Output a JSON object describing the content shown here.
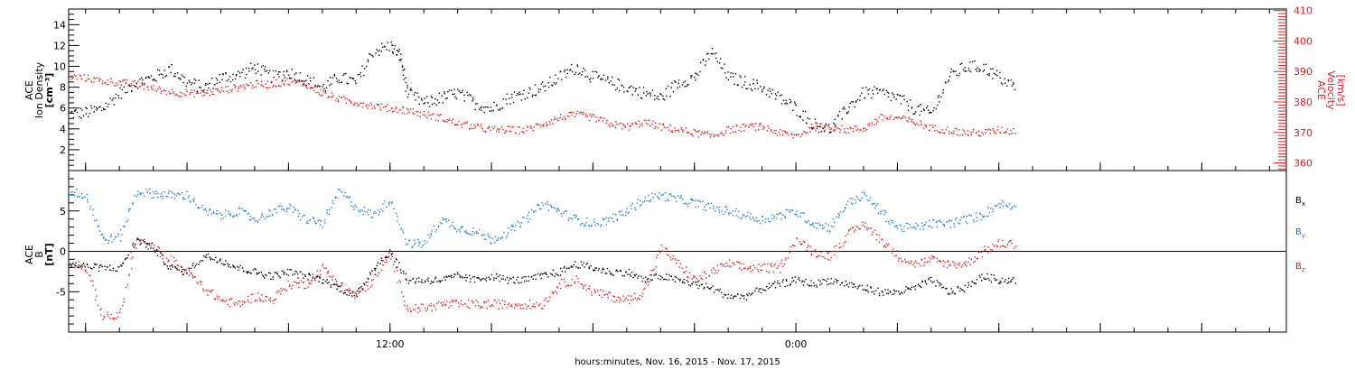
{
  "chart_data": [
    {
      "type": "scatter",
      "panel": "top",
      "ylabel_lines": [
        "ACE",
        "Ion Density",
        "[cm⁻³]"
      ],
      "ylabel_right_lines": [
        "ACE",
        "Velocity",
        "[km/s]"
      ],
      "ylim": [
        0,
        15.5
      ],
      "yticks": [
        2,
        4,
        6,
        8,
        10,
        12,
        14
      ],
      "ylim_right": [
        357.5,
        410.5
      ],
      "yticks_right": [
        360,
        370,
        380,
        390,
        400,
        410
      ],
      "series": [
        {
          "color": "#000000",
          "axis": "left",
          "x_hours": [
            0.0,
            0.5,
            1.0,
            1.5,
            2.0,
            2.5,
            3.0,
            3.5,
            4.0,
            4.5,
            5.0,
            5.5,
            6.0,
            6.5,
            7.0,
            7.5,
            8.0,
            8.5,
            9.0,
            9.5,
            9.8,
            10.0,
            10.5,
            11.0,
            11.5,
            12.0,
            12.5,
            13.0,
            13.5,
            14.0,
            14.5,
            15.0,
            15.5,
            16.0,
            16.5,
            17.0,
            17.5,
            18.0,
            18.5,
            19.0,
            19.5,
            20.0,
            20.5,
            21.0,
            21.5,
            22.0,
            22.5,
            23.0,
            23.5,
            24.0,
            24.5,
            25.0,
            25.5,
            26.0,
            26.5,
            27.0,
            27.5,
            28.0
          ],
          "values": [
            5.5,
            5.6,
            6.0,
            7.5,
            8.5,
            9.0,
            9.8,
            8.5,
            8.0,
            9.0,
            9.2,
            10.0,
            9.0,
            9.5,
            8.8,
            8.0,
            9.0,
            8.5,
            11.5,
            12.0,
            11.0,
            7.5,
            6.5,
            7.0,
            7.5,
            6.5,
            6.0,
            7.0,
            7.5,
            8.0,
            9.0,
            10.0,
            9.0,
            8.5,
            8.0,
            7.5,
            7.0,
            8.5,
            9.0,
            11.5,
            9.0,
            8.5,
            8.0,
            7.0,
            6.0,
            4.5,
            4.0,
            6.0,
            7.5,
            7.5,
            7.0,
            6.0,
            5.5,
            9.0,
            10.0,
            10.0,
            9.0,
            8.0
          ]
        },
        {
          "color": "#dd2222",
          "axis": "right",
          "x_hours": [
            0.0,
            0.5,
            1.0,
            1.5,
            2.0,
            2.5,
            3.0,
            3.5,
            4.0,
            4.5,
            5.0,
            5.5,
            6.0,
            6.5,
            7.0,
            7.5,
            8.0,
            8.5,
            9.0,
            9.5,
            10.0,
            10.5,
            11.0,
            11.5,
            12.0,
            12.5,
            13.0,
            13.5,
            14.0,
            14.5,
            15.0,
            15.5,
            16.0,
            16.5,
            17.0,
            17.5,
            18.0,
            18.5,
            19.0,
            19.5,
            20.0,
            20.5,
            21.0,
            21.5,
            22.0,
            22.5,
            23.0,
            23.5,
            24.0,
            24.5,
            25.0,
            25.5,
            26.0,
            26.5,
            27.0,
            27.5,
            28.0
          ],
          "values": [
            388.5,
            388.0,
            387.0,
            386.5,
            386.0,
            384.5,
            383.5,
            383.0,
            383.0,
            384.0,
            385.0,
            386.0,
            386.0,
            387.0,
            386.0,
            383.0,
            381.0,
            380.0,
            379.0,
            378.0,
            377.5,
            376.0,
            375.0,
            373.0,
            372.0,
            371.0,
            371.0,
            371.0,
            373.0,
            375.0,
            376.0,
            375.0,
            373.0,
            372.0,
            373.5,
            372.0,
            371.0,
            370.0,
            369.0,
            371.0,
            372.0,
            372.0,
            370.0,
            369.0,
            372.0,
            372.0,
            371.0,
            371.5,
            375.0,
            375.0,
            373.5,
            371.5,
            371.0,
            370.0,
            370.0,
            371.0,
            370.5
          ]
        }
      ]
    },
    {
      "type": "scatter",
      "panel": "bottom",
      "ylabel_lines": [
        "ACE",
        "B",
        "[nT]"
      ],
      "ylim": [
        -10,
        10
      ],
      "yticks": [
        -5,
        0,
        5
      ],
      "legend": [
        "Bx",
        "By",
        "Bz"
      ],
      "series": [
        {
          "name": "Bx",
          "color": "#000000",
          "x_hours": [
            0.0,
            0.5,
            1.0,
            1.5,
            2.0,
            2.5,
            3.0,
            3.5,
            4.0,
            4.5,
            5.0,
            5.5,
            6.0,
            6.5,
            7.0,
            7.5,
            8.0,
            8.5,
            9.0,
            9.5,
            10.0,
            10.5,
            11.0,
            11.5,
            12.0,
            12.5,
            13.0,
            13.5,
            14.0,
            14.5,
            15.0,
            15.5,
            16.0,
            16.5,
            17.0,
            17.5,
            18.0,
            18.5,
            19.0,
            19.5,
            20.0,
            20.5,
            21.0,
            21.5,
            22.0,
            22.5,
            23.0,
            23.5,
            24.0,
            24.5,
            25.0,
            25.5,
            26.0,
            26.5,
            27.0,
            27.5,
            28.0
          ],
          "values": [
            -1.5,
            -1.8,
            -2.0,
            -2.0,
            1.5,
            0.5,
            -2.0,
            -2.5,
            -0.5,
            -1.0,
            -2.0,
            -2.5,
            -3.0,
            -2.5,
            -3.0,
            -3.5,
            -4.5,
            -5.5,
            -2.0,
            0.0,
            -3.5,
            -3.5,
            -3.5,
            -3.0,
            -3.5,
            -3.0,
            -3.5,
            -3.5,
            -3.0,
            -2.5,
            -1.5,
            -2.0,
            -2.5,
            -2.5,
            -3.5,
            -3.0,
            -3.5,
            -4.0,
            -4.5,
            -5.5,
            -5.5,
            -4.5,
            -4.0,
            -3.5,
            -4.0,
            -3.5,
            -4.0,
            -4.5,
            -5.0,
            -5.0,
            -4.5,
            -3.5,
            -5.0,
            -4.5,
            -3.0,
            -3.5,
            -3.5
          ]
        },
        {
          "name": "By",
          "color": "#1c7fd4",
          "x_hours": [
            0.0,
            0.5,
            1.0,
            1.5,
            2.0,
            2.5,
            3.0,
            3.5,
            4.0,
            4.5,
            5.0,
            5.5,
            6.0,
            6.5,
            7.0,
            7.5,
            8.0,
            8.5,
            9.0,
            9.5,
            10.0,
            10.5,
            11.0,
            11.5,
            12.0,
            12.5,
            13.0,
            13.5,
            14.0,
            14.5,
            15.0,
            15.5,
            16.0,
            16.5,
            17.0,
            17.5,
            18.0,
            18.5,
            19.0,
            19.5,
            20.0,
            20.5,
            21.0,
            21.5,
            22.0,
            22.5,
            23.0,
            23.5,
            24.0,
            24.5,
            25.0,
            25.5,
            26.0,
            26.5,
            27.0,
            27.5,
            28.0
          ],
          "values": [
            7.5,
            7.0,
            1.5,
            1.8,
            7.5,
            7.2,
            7.0,
            7.0,
            5.0,
            4.5,
            5.0,
            4.0,
            5.0,
            5.5,
            4.0,
            3.5,
            7.5,
            5.5,
            4.5,
            6.5,
            1.0,
            1.0,
            4.0,
            3.0,
            2.5,
            1.5,
            2.5,
            4.0,
            6.0,
            5.0,
            4.0,
            3.5,
            4.0,
            5.0,
            6.5,
            7.0,
            6.5,
            6.0,
            5.5,
            5.0,
            4.5,
            4.0,
            4.5,
            5.0,
            3.5,
            3.0,
            6.0,
            7.0,
            5.0,
            3.0,
            3.0,
            3.5,
            3.5,
            4.0,
            4.5,
            6.0,
            5.5
          ]
        },
        {
          "name": "Bz",
          "color": "#dd2222",
          "x_hours": [
            0.0,
            0.5,
            1.0,
            1.5,
            2.0,
            2.5,
            3.0,
            3.5,
            4.0,
            4.5,
            5.0,
            5.5,
            6.0,
            6.5,
            7.0,
            7.5,
            8.0,
            8.5,
            9.0,
            9.5,
            10.0,
            10.5,
            11.0,
            11.5,
            12.0,
            12.5,
            13.0,
            13.5,
            14.0,
            14.5,
            15.0,
            15.5,
            16.0,
            16.5,
            17.0,
            17.5,
            18.0,
            18.5,
            19.0,
            19.5,
            20.0,
            20.5,
            21.0,
            21.5,
            22.0,
            22.5,
            23.0,
            23.5,
            24.0,
            24.5,
            25.0,
            25.5,
            26.0,
            26.5,
            27.0,
            27.5,
            28.0
          ],
          "values": [
            -1.0,
            -2.0,
            -8.0,
            -8.0,
            1.5,
            0.5,
            -1.0,
            -2.5,
            -4.5,
            -6.0,
            -6.5,
            -5.5,
            -6.0,
            -4.0,
            -4.0,
            -2.0,
            -4.0,
            -5.5,
            -3.5,
            -0.5,
            -7.0,
            -7.0,
            -6.5,
            -6.5,
            -6.5,
            -6.5,
            -6.5,
            -6.5,
            -6.5,
            -4.0,
            -3.5,
            -5.0,
            -5.5,
            -6.0,
            -5.0,
            0.5,
            -1.5,
            -3.5,
            -2.5,
            -1.5,
            -2.0,
            -2.0,
            -2.0,
            1.5,
            0.0,
            -0.5,
            2.0,
            3.5,
            1.5,
            -0.5,
            -1.5,
            -1.0,
            -1.5,
            -1.5,
            0.0,
            1.0,
            1.0
          ]
        }
      ]
    },
    {
      "type": "axis",
      "x_range_hours": [
        0,
        36
      ],
      "x_start_hour_of_day": 2.5,
      "xticks_labeled": [
        {
          "hour": 9.5,
          "label": "12:00"
        },
        {
          "hour": 21.5,
          "label": "0:00"
        }
      ],
      "xlabel": "hours:minutes, Nov. 16, 2015 - Nov. 17, 2015"
    }
  ]
}
